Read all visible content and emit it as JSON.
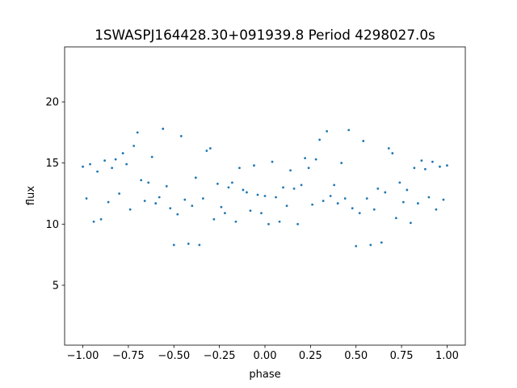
{
  "chart_data": {
    "type": "scatter",
    "title": "1SWASPJ164428.30+091939.8 Period 4298027.0s",
    "xlabel": "phase",
    "ylabel": "flux",
    "xlim": [
      -1.1,
      1.1
    ],
    "ylim": [
      0.1,
      24.5
    ],
    "xticks": [
      -1.0,
      -0.75,
      -0.5,
      -0.25,
      0.0,
      0.25,
      0.5,
      0.75,
      1.0
    ],
    "xtick_labels": [
      "−1.00",
      "−0.75",
      "−0.50",
      "−0.25",
      "0.00",
      "0.25",
      "0.50",
      "0.75",
      "1.00"
    ],
    "yticks": [
      5,
      10,
      15,
      20
    ],
    "ytick_labels": [
      "5",
      "10",
      "15",
      "20"
    ],
    "grid": false,
    "marker_color": "#1f77b4",
    "series": [
      {
        "x": [
          -1.0,
          -0.98,
          -0.96,
          -0.94,
          -0.92,
          -0.9,
          -0.88,
          -0.86,
          -0.84,
          -0.82,
          -0.8,
          -0.78,
          -0.76,
          -0.74,
          -0.72,
          -0.7,
          -0.68,
          -0.66,
          -0.64,
          -0.62,
          -0.6,
          -0.58,
          -0.56,
          -0.54,
          -0.52,
          -0.5,
          -0.48,
          -0.46,
          -0.44,
          -0.42,
          -0.4,
          -0.38,
          -0.36,
          -0.34,
          -0.32,
          -0.3,
          -0.28,
          -0.26,
          -0.24,
          -0.22,
          -0.2,
          -0.18,
          -0.16,
          -0.14,
          -0.12,
          -0.1,
          -0.08,
          -0.06,
          -0.04,
          -0.02,
          0.0,
          0.02,
          0.04,
          0.06,
          0.08,
          0.1,
          0.12,
          0.14,
          0.16,
          0.18,
          0.2,
          0.22,
          0.24,
          0.26,
          0.28,
          0.3,
          0.32,
          0.34,
          0.36,
          0.38,
          0.4,
          0.42,
          0.44,
          0.46,
          0.48,
          0.5,
          0.52,
          0.54,
          0.56,
          0.58,
          0.6,
          0.62,
          0.64,
          0.66,
          0.68,
          0.7,
          0.72,
          0.74,
          0.76,
          0.78,
          0.8,
          0.82,
          0.84,
          0.86,
          0.88,
          0.9,
          0.92,
          0.94,
          0.96,
          0.98,
          1.0
        ],
        "y": [
          14.7,
          12.1,
          14.9,
          10.2,
          14.3,
          10.4,
          15.2,
          11.8,
          14.6,
          15.3,
          12.5,
          15.8,
          14.9,
          11.2,
          16.4,
          17.5,
          13.6,
          11.9,
          13.4,
          15.5,
          11.7,
          12.2,
          17.8,
          13.1,
          11.3,
          8.3,
          10.8,
          17.2,
          12.0,
          8.4,
          11.5,
          13.8,
          8.3,
          12.1,
          16.0,
          16.2,
          10.4,
          13.3,
          11.4,
          10.9,
          13.0,
          13.4,
          10.2,
          14.6,
          12.8,
          12.6,
          11.1,
          14.8,
          12.4,
          10.9,
          12.3,
          10.0,
          15.1,
          12.2,
          10.2,
          13.0,
          11.5,
          14.4,
          12.9,
          10.0,
          13.2,
          15.4,
          14.6,
          11.6,
          15.3,
          16.9,
          11.9,
          17.6,
          12.3,
          13.2,
          11.7,
          15.0,
          12.1,
          17.7,
          11.3,
          8.2,
          10.9,
          16.8,
          12.1,
          8.3,
          11.2,
          12.9,
          8.5,
          12.6,
          16.2,
          15.8,
          10.5,
          13.4,
          11.8,
          12.8,
          10.1,
          14.6,
          11.7,
          15.2,
          14.5,
          12.2,
          15.1,
          11.2,
          14.7,
          12.0,
          14.8
        ]
      }
    ]
  }
}
